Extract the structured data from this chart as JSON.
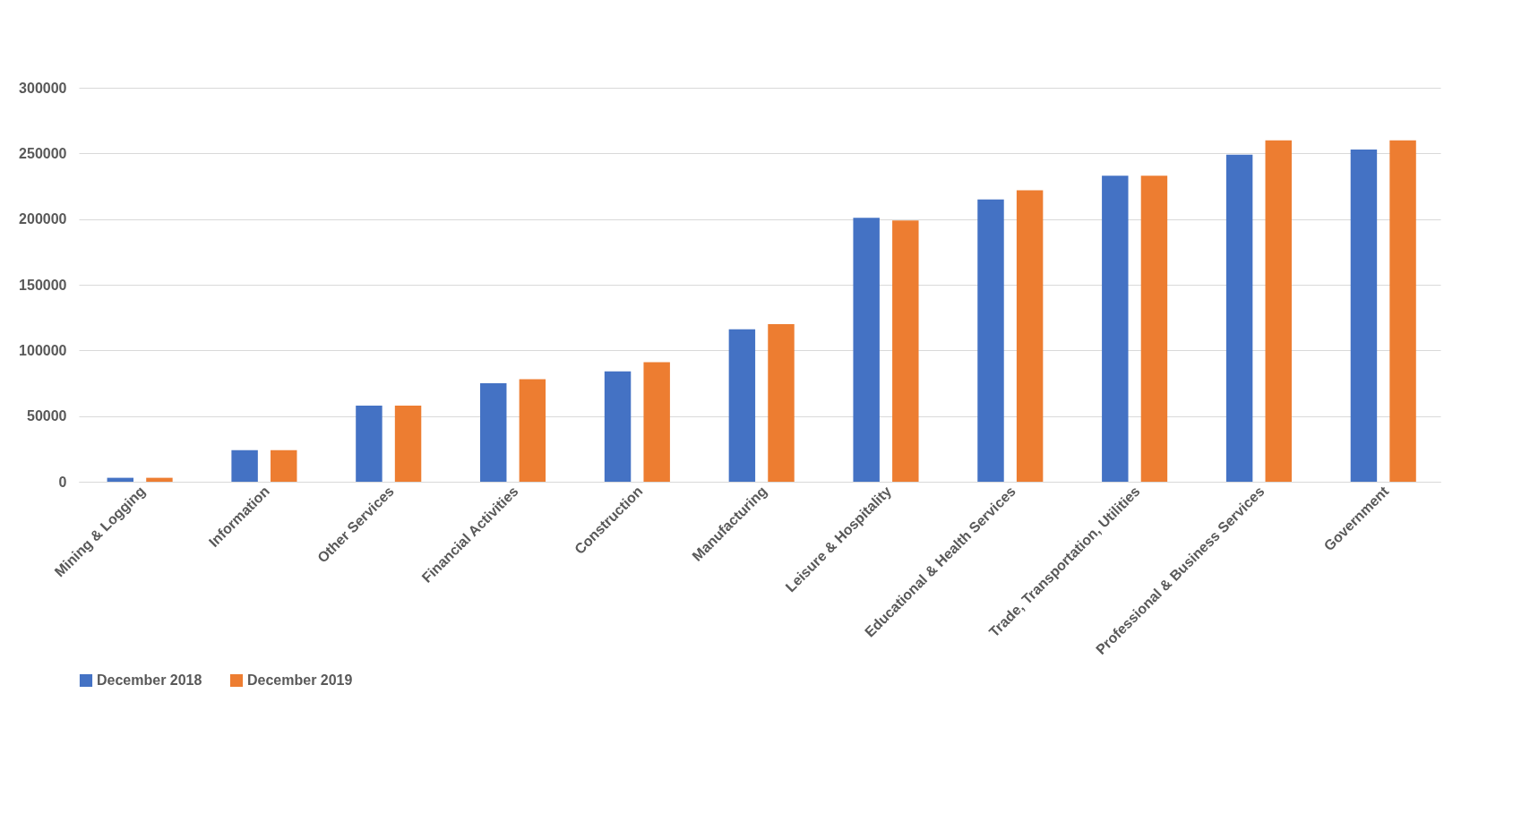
{
  "chart_data": {
    "type": "bar",
    "categories": [
      "Mining & Logging",
      "Information",
      "Other Services",
      "Financial Activities",
      "Construction",
      "Manufacturing",
      "Leisure & Hospitality",
      "Educational & Health Services",
      "Trade, Transportation, Utilities",
      "Professional & Business Services",
      "Government"
    ],
    "series": [
      {
        "name": "December 2018",
        "color": "#4472c4",
        "values": [
          3000,
          24000,
          58000,
          75000,
          84000,
          116000,
          201000,
          215000,
          233000,
          249000,
          253000
        ]
      },
      {
        "name": "December 2019",
        "color": "#ed7d31",
        "values": [
          3000,
          24000,
          58000,
          78000,
          91000,
          120000,
          199000,
          222000,
          233000,
          260000,
          260000
        ]
      }
    ],
    "ylim": [
      0,
      300000
    ],
    "yticks": [
      0,
      50000,
      100000,
      150000,
      200000,
      250000,
      300000
    ],
    "grid": "y",
    "legend": "bottom"
  }
}
